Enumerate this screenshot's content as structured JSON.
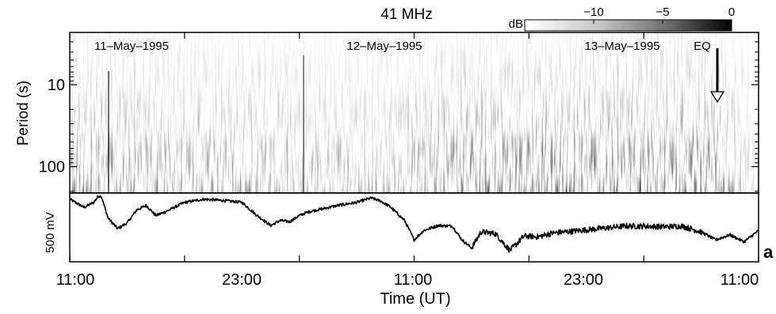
{
  "chart_data": [
    {
      "type": "heatmap",
      "title": "41 MHz",
      "ylabel": "Period (s)",
      "y_scale": "log",
      "y_ticks": [
        {
          "value": 10,
          "label": "10"
        },
        {
          "value": 100,
          "label": "100"
        }
      ],
      "y_range_seconds": [
        2.3,
        210
      ],
      "day_labels": [
        "11–May–1995",
        "12–May–1995",
        "13–May–1995"
      ],
      "colorbar": {
        "label": "dB",
        "range": [
          -15,
          0
        ],
        "ticks": [
          {
            "value": -10,
            "label": "−10"
          },
          {
            "value": -5,
            "label": "−5"
          },
          {
            "value": 0,
            "label": "0"
          }
        ],
        "colors": [
          "#ffffff",
          "#000000"
        ]
      },
      "annotation": {
        "label": "EQ",
        "time_hours_after_start": 69.0
      }
    },
    {
      "type": "line",
      "ylabel": "500 mV",
      "xlabel": "Time (UT)",
      "x_ticks": [
        "11:00",
        "23:00",
        "11:00",
        "23:00",
        "11:00"
      ],
      "x_range_hours": [
        0,
        72
      ],
      "x_tick_hours": [
        0,
        12,
        24,
        36,
        48,
        60,
        72
      ],
      "series": [
        {
          "t_hours": [
            0,
            1.5,
            2.5,
            3.0,
            3.3,
            3.6,
            4.0,
            5.0,
            6.0,
            7.0,
            8.0,
            9.0,
            10.0,
            12.0,
            14.0,
            16.0,
            18.0,
            19.5,
            21.0,
            22.0,
            23.0,
            24.0,
            25.0,
            26.5,
            28.0,
            30.0,
            31.5,
            32.5,
            33.5,
            35.0,
            36.0,
            37.0,
            38.5,
            40.0,
            41.0,
            42.0,
            43.0,
            44.5,
            46.0,
            47.5,
            49.0,
            50.5,
            52.0,
            54.0,
            56.0,
            58.0,
            60.0,
            62.0,
            64.0,
            66.0,
            67.5,
            69.0,
            70.5,
            72.0
          ],
          "values_mV": [
            900,
            770,
            850,
            950,
            950,
            800,
            600,
            430,
            520,
            730,
            800,
            640,
            700,
            850,
            900,
            880,
            850,
            650,
            480,
            560,
            540,
            640,
            700,
            750,
            800,
            850,
            920,
            870,
            780,
            560,
            250,
            400,
            480,
            470,
            250,
            120,
            380,
            350,
            80,
            310,
            300,
            360,
            380,
            410,
            440,
            470,
            470,
            460,
            470,
            380,
            250,
            330,
            220,
            400
          ]
        }
      ]
    }
  ],
  "panel_label": "a"
}
